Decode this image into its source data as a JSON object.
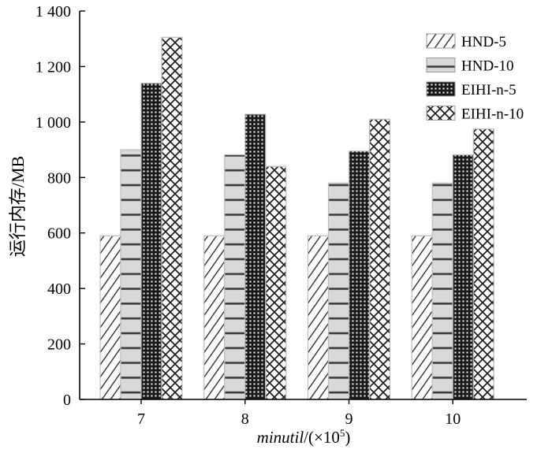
{
  "chart_data": {
    "type": "bar",
    "title": "",
    "xlabel_italic": "minutil",
    "xlabel_rest": "/(×10",
    "xlabel_sup": "5",
    "xlabel_close": ")",
    "ylabel": "运行内存/MB",
    "ylim": [
      0,
      1400
    ],
    "yticks": [
      0,
      200,
      400,
      600,
      800,
      1000,
      1200,
      1400
    ],
    "ytick_labels": [
      "0",
      "200",
      "400",
      "600",
      "800",
      "1 000",
      "1 200",
      "1 400"
    ],
    "categories": [
      "7",
      "8",
      "9",
      "10"
    ],
    "series": [
      {
        "name": "HND-5",
        "pattern": "diag",
        "values": [
          590,
          590,
          590,
          590
        ]
      },
      {
        "name": "HND-10",
        "pattern": "hstripe",
        "values": [
          900,
          882,
          780,
          780
        ]
      },
      {
        "name": "EIHI-n-5",
        "pattern": "dots",
        "values": [
          1140,
          1028,
          895,
          882
        ]
      },
      {
        "name": "EIHI-n-10",
        "pattern": "cross",
        "values": [
          1305,
          840,
          1010,
          975
        ]
      }
    ],
    "legend_position": "top-right",
    "grid": false
  }
}
